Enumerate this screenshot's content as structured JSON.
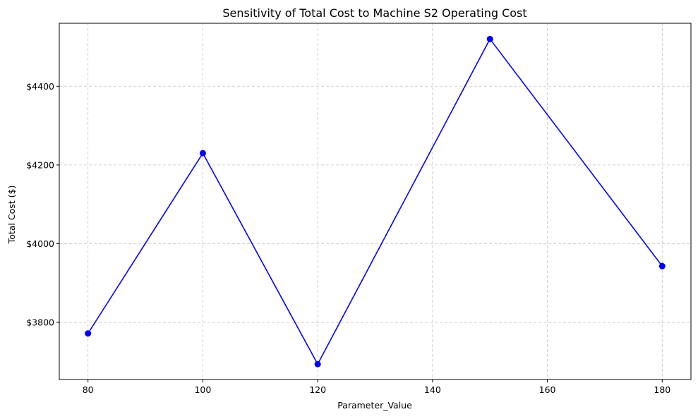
{
  "chart_data": {
    "type": "line",
    "title": "Sensitivity of Total Cost to Machine S2 Operating Cost",
    "xlabel": "Parameter_Value",
    "ylabel": "Total Cost ($)",
    "x": [
      80,
      100,
      120,
      150,
      180
    ],
    "series": [
      {
        "values": [
          3772,
          4230,
          3694,
          4520,
          3943
        ],
        "color": "#0000ff",
        "marker": "circle"
      }
    ],
    "xlim": [
      75,
      185
    ],
    "ylim": [
      3655,
      4560
    ],
    "xticks": [
      80,
      100,
      120,
      140,
      160,
      180
    ],
    "yticks": [
      3800,
      4000,
      4200,
      4400
    ],
    "ytick_format": "$",
    "grid": true
  }
}
